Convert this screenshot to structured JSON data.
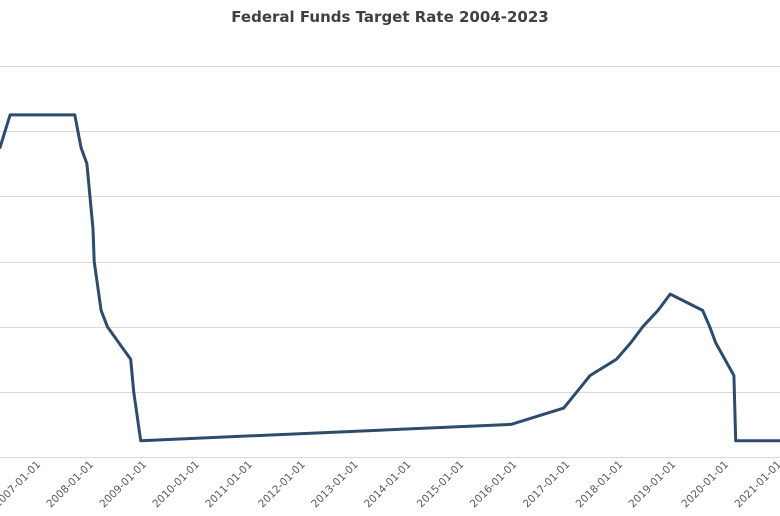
{
  "chart_data": {
    "type": "line",
    "title": "Federal Funds Target Rate 2004-2023",
    "xlabel": "",
    "ylabel": "",
    "x_axis_type": "date",
    "xlim": [
      "2006-04-20",
      "2021-01-15"
    ],
    "ylim": [
      0,
      6
    ],
    "y_gridlines": [
      0,
      1,
      2,
      3,
      4,
      5,
      6
    ],
    "grid": true,
    "legend": "none",
    "x_tick_labels": [
      "2007-01-01",
      "2008-01-01",
      "2009-01-01",
      "2010-01-01",
      "2011-01-01",
      "2012-01-01",
      "2013-01-01",
      "2014-01-01",
      "2015-01-01",
      "2016-01-01",
      "2017-01-01",
      "2018-01-01",
      "2019-01-01",
      "2020-01-01",
      "2021-01-01"
    ],
    "series": [
      {
        "color": "#2e4b6b",
        "points": [
          [
            "2006-04-20",
            4.75
          ],
          [
            "2006-06-29",
            5.25
          ],
          [
            "2007-09-18",
            5.25
          ],
          [
            "2007-10-31",
            4.75
          ],
          [
            "2007-12-11",
            4.5
          ],
          [
            "2008-01-22",
            3.5
          ],
          [
            "2008-01-30",
            3.0
          ],
          [
            "2008-03-18",
            2.25
          ],
          [
            "2008-04-30",
            2.0
          ],
          [
            "2008-10-08",
            1.5
          ],
          [
            "2008-10-29",
            1.0
          ],
          [
            "2008-12-16",
            0.25
          ],
          [
            "2015-12-16",
            0.5
          ],
          [
            "2016-12-14",
            0.75
          ],
          [
            "2017-03-15",
            1.0
          ],
          [
            "2017-06-14",
            1.25
          ],
          [
            "2017-12-13",
            1.5
          ],
          [
            "2018-03-21",
            1.75
          ],
          [
            "2018-06-13",
            2.0
          ],
          [
            "2018-09-26",
            2.25
          ],
          [
            "2018-12-19",
            2.5
          ],
          [
            "2019-07-31",
            2.25
          ],
          [
            "2019-09-18",
            2.0
          ],
          [
            "2019-10-30",
            1.75
          ],
          [
            "2020-03-03",
            1.25
          ],
          [
            "2020-03-15",
            0.25
          ],
          [
            "2021-01-15",
            0.25
          ]
        ]
      }
    ]
  }
}
